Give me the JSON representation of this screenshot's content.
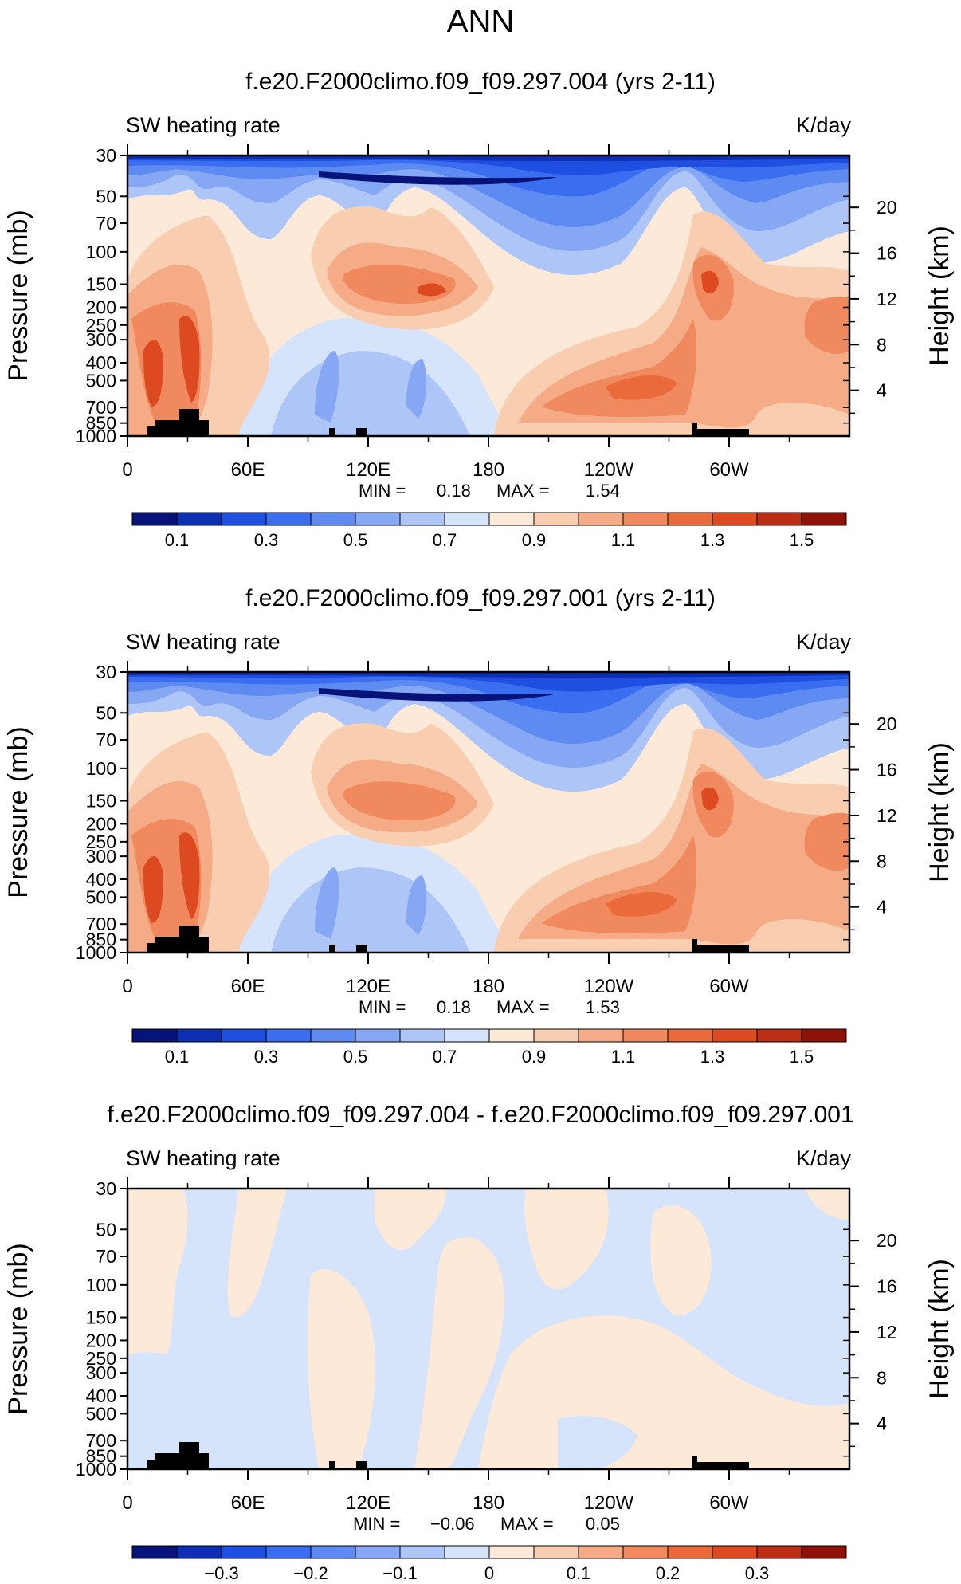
{
  "page": {
    "title": "ANN"
  },
  "colors": {
    "abs_scale": [
      "#08137a",
      "#0c2fb4",
      "#1f4fe0",
      "#3a6df0",
      "#5e8bf2",
      "#86a8f4",
      "#aec5f7",
      "#d6e4fb",
      "#fde9d8",
      "#f9cdb0",
      "#f5ab86",
      "#f08a5e",
      "#eb6a3b",
      "#dd4a22",
      "#bb2e14",
      "#8f1208"
    ],
    "diff_scale": [
      "#08137a",
      "#0c2fb4",
      "#1f4fe0",
      "#3a6df0",
      "#5e8bf2",
      "#86a8f4",
      "#aec5f7",
      "#d6e4fb",
      "#fde9d8",
      "#f9cdb0",
      "#f5ab86",
      "#f08a5e",
      "#eb6a3b",
      "#dd4a22",
      "#bb2e14",
      "#8f1208"
    ],
    "terrain": "#000000"
  },
  "chart_data": [
    {
      "type": "heatmap",
      "title": "f.e20.F2000climo.f09_f09.297.004 (yrs 2-11)",
      "subtitle_left": "SW heating rate",
      "subtitle_right": "K/day",
      "ylabel": "Pressure (mb)",
      "y2label": "Height (km)",
      "xticks": [
        "0",
        "60E",
        "120E",
        "180",
        "120W",
        "60W"
      ],
      "xlim": [
        0,
        360
      ],
      "yticks": [
        "30",
        "50",
        "70",
        "100",
        "150",
        "200",
        "250",
        "300",
        "400",
        "500",
        "700",
        "850",
        "1000"
      ],
      "y2ticks": [
        "20",
        "16",
        "12",
        "8",
        "4"
      ],
      "min_label": "MIN =",
      "min_value": "0.18",
      "max_label": "MAX =",
      "max_value": "1.54",
      "colorbar_labels": [
        "0.1",
        "0.3",
        "0.5",
        "0.7",
        "0.9",
        "1.1",
        "1.3",
        "1.5"
      ],
      "levels": [
        0.1,
        0.2,
        0.3,
        0.4,
        0.5,
        0.6,
        0.7,
        0.8,
        0.9,
        1.0,
        1.1,
        1.2,
        1.3,
        1.4,
        1.5
      ]
    },
    {
      "type": "heatmap",
      "title": "f.e20.F2000climo.f09_f09.297.001 (yrs 2-11)",
      "subtitle_left": "SW heating rate",
      "subtitle_right": "K/day",
      "ylabel": "Pressure (mb)",
      "y2label": "Height (km)",
      "xticks": [
        "0",
        "60E",
        "120E",
        "180",
        "120W",
        "60W"
      ],
      "xlim": [
        0,
        360
      ],
      "yticks": [
        "30",
        "50",
        "70",
        "100",
        "150",
        "200",
        "250",
        "300",
        "400",
        "500",
        "700",
        "850",
        "1000"
      ],
      "y2ticks": [
        "20",
        "16",
        "12",
        "8",
        "4"
      ],
      "min_label": "MIN =",
      "min_value": "0.18",
      "max_label": "MAX =",
      "max_value": "1.53",
      "colorbar_labels": [
        "0.1",
        "0.3",
        "0.5",
        "0.7",
        "0.9",
        "1.1",
        "1.3",
        "1.5"
      ],
      "levels": [
        0.1,
        0.2,
        0.3,
        0.4,
        0.5,
        0.6,
        0.7,
        0.8,
        0.9,
        1.0,
        1.1,
        1.2,
        1.3,
        1.4,
        1.5
      ]
    },
    {
      "type": "heatmap",
      "title": "f.e20.F2000climo.f09_f09.297.004 - f.e20.F2000climo.f09_f09.297.001",
      "subtitle_left": "SW heating rate",
      "subtitle_right": "K/day",
      "ylabel": "Pressure (mb)",
      "y2label": "Height (km)",
      "xticks": [
        "0",
        "60E",
        "120E",
        "180",
        "120W",
        "60W"
      ],
      "xlim": [
        0,
        360
      ],
      "yticks": [
        "30",
        "50",
        "70",
        "100",
        "150",
        "200",
        "250",
        "300",
        "400",
        "500",
        "700",
        "850",
        "1000"
      ],
      "y2ticks": [
        "20",
        "16",
        "12",
        "8",
        "4"
      ],
      "min_label": "MIN =",
      "min_value": "−0.06",
      "max_label": "MAX =",
      "max_value": "0.05",
      "colorbar_labels": [
        "−0.3",
        "−0.2",
        "−0.1",
        "0",
        "0.1",
        "0.2",
        "0.3"
      ],
      "levels": [
        -0.35,
        -0.3,
        -0.25,
        -0.2,
        -0.15,
        -0.1,
        -0.05,
        0,
        0.05,
        0.1,
        0.15,
        0.2,
        0.25,
        0.3,
        0.35
      ]
    }
  ]
}
